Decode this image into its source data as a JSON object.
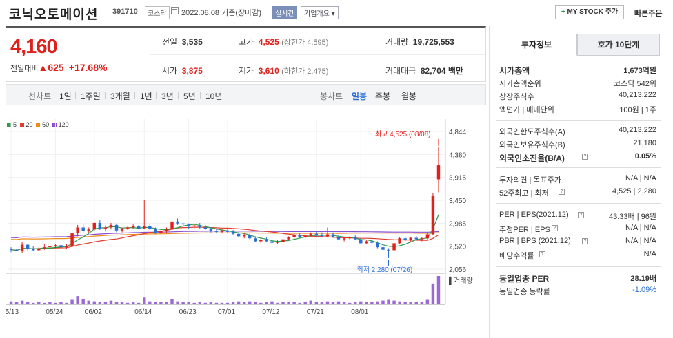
{
  "header": {
    "company_name": "코닉오토메이션",
    "code": "391710",
    "market": "코스닥",
    "date": "2022.08.08 기준(장마감)",
    "realtime": "실시간",
    "company_info": "기업개요",
    "my_stock": "MY STOCK 추가",
    "quick_order": "빠른주문"
  },
  "price": {
    "current": "4,160",
    "change_label": "전일대비",
    "change": "625",
    "change_pct": "+17.68%",
    "prev_label": "전일",
    "prev": "3,535",
    "high_label": "고가",
    "high": "4,525",
    "upper_limit": "(상한가 4,595)",
    "volume_label": "거래량",
    "volume": "19,725,553",
    "open_label": "시가",
    "open": "3,875",
    "low_label": "저가",
    "low": "3,610",
    "lower_limit": "(하한가 2,475)",
    "amount_label": "거래대금",
    "amount": "82,704",
    "amount_unit": "백만"
  },
  "tabs": {
    "line_label": "선차트",
    "periods": [
      "1일",
      "1주일",
      "3개월",
      "1년",
      "3년",
      "5년",
      "10년"
    ],
    "candle_label": "봉차트",
    "candles": [
      "일봉",
      "주봉",
      "월봉"
    ]
  },
  "chart_data": {
    "type": "candlestick",
    "legend": [
      "5",
      "20",
      "60",
      "120"
    ],
    "legend_colors": [
      "#2a9d4a",
      "#e23c2e",
      "#f08c1a",
      "#8a4fd0"
    ],
    "y_ticks": [
      "4,844",
      "4,380",
      "3,915",
      "3,450",
      "2,985",
      "2,520",
      "2,056"
    ],
    "y_tick_values": [
      4844,
      4380,
      3915,
      3450,
      2985,
      2520,
      2056
    ],
    "x_ticks": [
      "05/13",
      "05/24",
      "06/02",
      "06/14",
      "06/23",
      "07/01",
      "07/12",
      "07/21",
      "08/01"
    ],
    "high_note": "최고 4,525 (08/08)",
    "low_note": "최저 2,280 (07/26)",
    "volume_label": "거래량",
    "ylim": [
      2056,
      4844
    ],
    "candles": [
      [
        2470,
        2500,
        2400,
        2450
      ],
      [
        2450,
        2470,
        2420,
        2430
      ],
      [
        2430,
        2600,
        2380,
        2550
      ],
      [
        2550,
        2560,
        2430,
        2470
      ],
      [
        2470,
        2520,
        2430,
        2440
      ],
      [
        2440,
        2500,
        2420,
        2480
      ],
      [
        2480,
        2560,
        2450,
        2500
      ],
      [
        2500,
        2530,
        2460,
        2520
      ],
      [
        2520,
        2560,
        2480,
        2540
      ],
      [
        2540,
        2570,
        2480,
        2500
      ],
      [
        2500,
        2560,
        2460,
        2520
      ],
      [
        2520,
        2800,
        2500,
        2780
      ],
      [
        2780,
        2950,
        2720,
        2900
      ],
      [
        2900,
        2960,
        2800,
        2830
      ],
      [
        2830,
        2900,
        2780,
        2860
      ],
      [
        2860,
        3020,
        2830,
        2990
      ],
      [
        2990,
        3050,
        2850,
        2880
      ],
      [
        2880,
        2940,
        2820,
        2900
      ],
      [
        2900,
        2990,
        2860,
        2950
      ],
      [
        2950,
        2980,
        2800,
        2840
      ],
      [
        2840,
        2900,
        2800,
        2880
      ],
      [
        2880,
        2920,
        2850,
        2900
      ],
      [
        2900,
        2960,
        2870,
        2920
      ],
      [
        2920,
        2950,
        2860,
        2880
      ],
      [
        2880,
        3450,
        2870,
        2930
      ],
      [
        2930,
        2980,
        2850,
        2870
      ],
      [
        2870,
        2900,
        2770,
        2790
      ],
      [
        2790,
        2860,
        2760,
        2830
      ],
      [
        2830,
        2900,
        2780,
        2860
      ],
      [
        2860,
        3050,
        2850,
        3020
      ],
      [
        3020,
        3080,
        2950,
        2980
      ],
      [
        2980,
        3000,
        2900,
        2960
      ],
      [
        2960,
        2980,
        2880,
        2920
      ],
      [
        2920,
        2970,
        2880,
        2940
      ],
      [
        2940,
        2990,
        2880,
        2900
      ],
      [
        2900,
        2950,
        2850,
        2870
      ],
      [
        2870,
        2900,
        2800,
        2830
      ],
      [
        2830,
        2880,
        2780,
        2810
      ],
      [
        2810,
        2860,
        2780,
        2840
      ],
      [
        2840,
        2870,
        2790,
        2810
      ],
      [
        2810,
        2850,
        2750,
        2770
      ],
      [
        2770,
        2800,
        2700,
        2720
      ],
      [
        2720,
        2780,
        2680,
        2750
      ],
      [
        2750,
        2790,
        2660,
        2680
      ],
      [
        2680,
        2720,
        2600,
        2620
      ],
      [
        2620,
        2680,
        2580,
        2650
      ],
      [
        2650,
        2700,
        2600,
        2620
      ],
      [
        2620,
        2650,
        2560,
        2590
      ],
      [
        2590,
        2640,
        2560,
        2610
      ],
      [
        2610,
        2680,
        2590,
        2660
      ],
      [
        2660,
        2720,
        2640,
        2700
      ],
      [
        2700,
        2760,
        2670,
        2740
      ],
      [
        2740,
        2780,
        2690,
        2710
      ],
      [
        2710,
        2760,
        2680,
        2730
      ],
      [
        2730,
        2800,
        2700,
        2770
      ],
      [
        2770,
        2820,
        2720,
        2750
      ],
      [
        2750,
        2800,
        2700,
        2720
      ],
      [
        2720,
        2900,
        2700,
        2760
      ],
      [
        2760,
        2800,
        2690,
        2710
      ],
      [
        2710,
        2740,
        2640,
        2660
      ],
      [
        2660,
        2700,
        2620,
        2680
      ],
      [
        2680,
        2720,
        2650,
        2700
      ],
      [
        2700,
        2740,
        2640,
        2660
      ],
      [
        2660,
        2690,
        2560,
        2580
      ],
      [
        2580,
        2640,
        2560,
        2620
      ],
      [
        2620,
        2660,
        2570,
        2590
      ],
      [
        2590,
        2620,
        2480,
        2500
      ],
      [
        2500,
        2540,
        2420,
        2450
      ],
      [
        2450,
        2480,
        2280,
        2440
      ],
      [
        2440,
        2600,
        2430,
        2580
      ],
      [
        2580,
        2700,
        2560,
        2680
      ],
      [
        2680,
        2720,
        2620,
        2650
      ],
      [
        2650,
        2700,
        2600,
        2690
      ],
      [
        2690,
        2730,
        2640,
        2660
      ],
      [
        2660,
        2700,
        2620,
        2680
      ],
      [
        2680,
        2800,
        2660,
        2760
      ],
      [
        2760,
        3600,
        2740,
        3535
      ],
      [
        3875,
        4525,
        3610,
        4160
      ]
    ],
    "volumes": [
      4,
      3,
      5,
      3,
      2,
      3,
      2,
      3,
      2,
      3,
      2,
      6,
      11,
      7,
      5,
      4,
      3,
      3,
      5,
      3,
      3,
      2,
      3,
      2,
      9,
      4,
      3,
      3,
      3,
      7,
      4,
      3,
      3,
      2,
      3,
      2,
      3,
      2,
      2,
      2,
      3,
      4,
      3,
      4,
      3,
      2,
      3,
      4,
      2,
      3,
      3,
      3,
      2,
      3,
      5,
      3,
      3,
      4,
      3,
      4,
      3,
      2,
      3,
      4,
      3,
      3,
      4,
      5,
      6,
      5,
      4,
      3,
      3,
      3,
      3,
      6,
      28,
      38
    ]
  },
  "investment": {
    "tab1": "투자정보",
    "tab2": "호가 10단계",
    "rows1": [
      {
        "k": "시가총액",
        "v": "1,673억원"
      },
      {
        "k": "시가총액순위",
        "v": "코스닥 542위"
      },
      {
        "k": "상장주식수",
        "v": "40,213,222"
      },
      {
        "k": "액면가 | 매매단위",
        "v": "100원 | 1주"
      }
    ],
    "rows2": [
      {
        "k": "외국인한도주식수(A)",
        "v": "40,213,222"
      },
      {
        "k": "외국인보유주식수(B)",
        "v": "21,180"
      },
      {
        "k": "외국인소진율(B/A)",
        "v": "0.05%"
      }
    ],
    "rows3": [
      {
        "k": "투자의견 | 목표주가",
        "v": "N/A | N/A"
      },
      {
        "k": "52주최고 | 최저",
        "v": "4,525 | 2,280"
      }
    ],
    "rows4": [
      {
        "k": "PER | EPS(2021.12)",
        "v": "43.33배 | 96원"
      },
      {
        "k": "추정PER | EPS",
        "v": "N/A | N/A"
      },
      {
        "k": "PBR | BPS (2021.12)",
        "v": "N/A | N/A"
      },
      {
        "k": "배당수익률",
        "v": "N/A"
      }
    ],
    "rows5": [
      {
        "k": "동일업종 PER",
        "v": "28.19배"
      },
      {
        "k": "동일업종 등락률",
        "v": "-1.09%"
      }
    ]
  }
}
